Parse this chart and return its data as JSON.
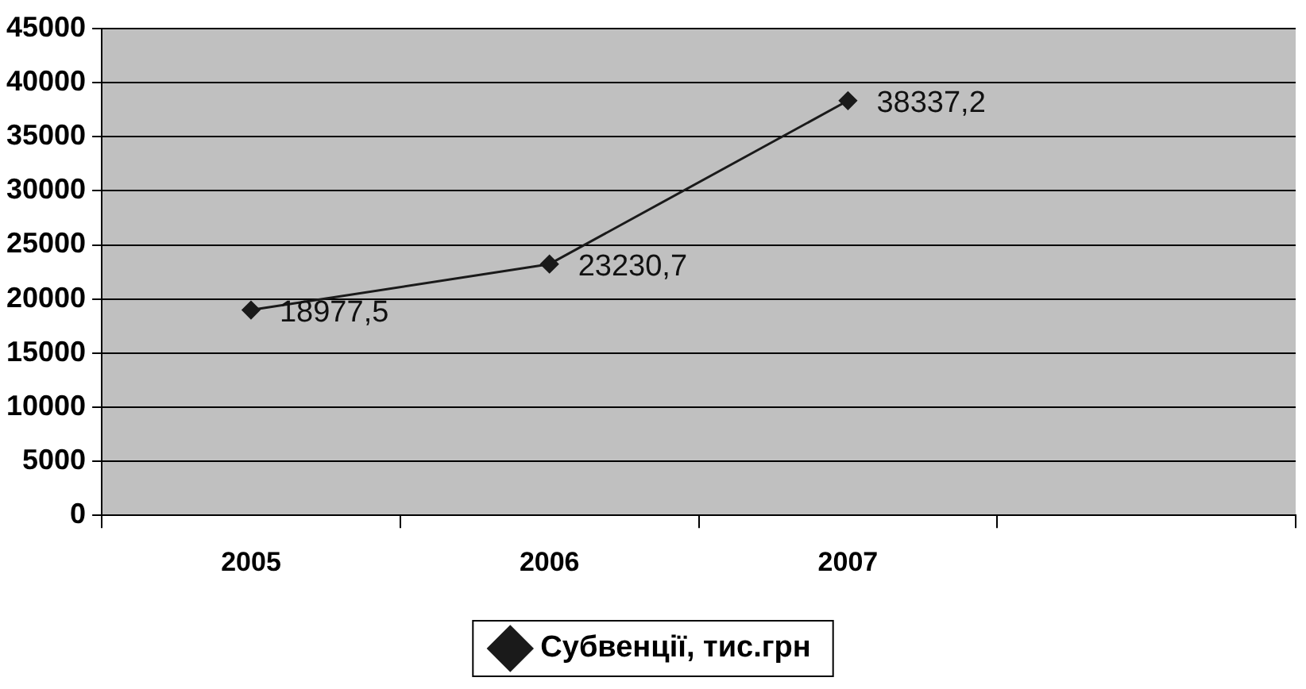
{
  "chart_data": {
    "type": "line",
    "categories": [
      "2005",
      "2006",
      "2007",
      null
    ],
    "series": [
      {
        "name": "Субвенції, тис.грн",
        "color": "#1a1a1a",
        "values": [
          18977.5,
          23230.7,
          38337.2,
          null
        ],
        "value_labels": [
          "18977,5",
          "23230,7",
          "38337,2",
          null
        ]
      }
    ],
    "ylim": [
      0,
      45000
    ],
    "yticks": [
      0,
      5000,
      10000,
      15000,
      20000,
      25000,
      30000,
      35000,
      40000,
      45000
    ],
    "grid": "y",
    "legend": "bottom",
    "marker": "diamond",
    "line_style": "solid"
  }
}
